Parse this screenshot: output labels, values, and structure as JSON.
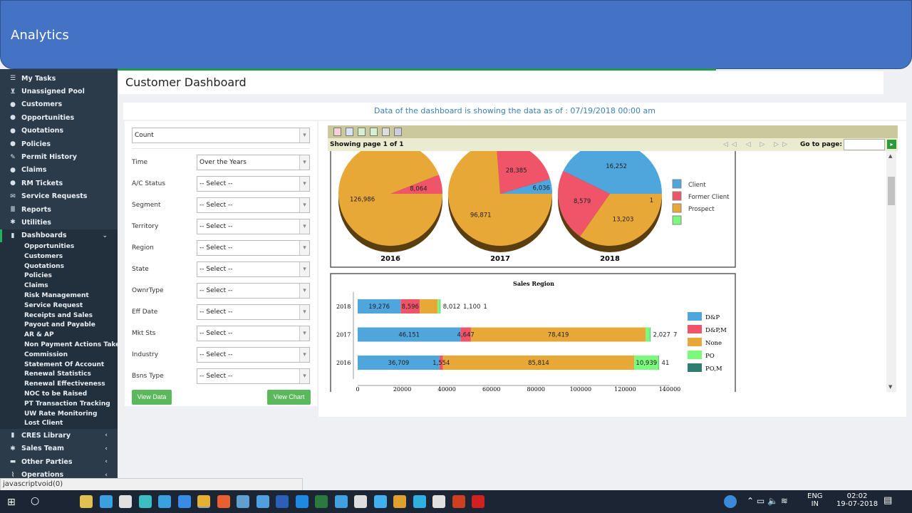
{
  "header": {
    "title": "Analytics"
  },
  "sidebar": {
    "items": [
      {
        "label": "My Tasks",
        "icon": "list-icon"
      },
      {
        "label": "Unassigned Pool",
        "icon": "cart-icon"
      },
      {
        "label": "Customers",
        "icon": "user-icon"
      },
      {
        "label": "Opportunities",
        "icon": "user-icon"
      },
      {
        "label": "Quotations",
        "icon": "user-icon"
      },
      {
        "label": "Policies",
        "icon": "user-icon"
      },
      {
        "label": "Permit History",
        "icon": "edit-icon"
      },
      {
        "label": "Claims",
        "icon": "user-icon"
      },
      {
        "label": "RM Tickets",
        "icon": "user-icon"
      },
      {
        "label": "Service Requests",
        "icon": "envelope-icon"
      },
      {
        "label": "Reports",
        "icon": "database-icon"
      },
      {
        "label": "Utilities",
        "icon": "gear-icon"
      },
      {
        "label": "Dashboards",
        "icon": "bar-chart-icon"
      }
    ],
    "dashboard_sub": [
      "Opportunities",
      "Customers",
      "Quotations",
      "Policies",
      "Claims",
      "Risk Management",
      "Service Request",
      "Receipts and Sales",
      "Payout and Payable",
      "AR & AP",
      "Non Payment Actions Taken",
      "Commission",
      "Statement Of Account",
      "Renewal Statistics",
      "Renewal Effectiveness",
      "NOC to be Raised",
      "PT Transaction Tracking",
      "UW Rate Monitoring",
      "Lost Client"
    ],
    "bottom_items": [
      {
        "label": "CRES Library",
        "icon": "bar-chart-icon"
      },
      {
        "label": "Sales Team",
        "icon": "gear-icon"
      },
      {
        "label": "Other Parties",
        "icon": "briefcase-icon"
      },
      {
        "label": "Operations",
        "icon": "paperclip-icon"
      }
    ]
  },
  "status_bar": "javascriptvoid(0)",
  "page": {
    "title": "Customer Dashboard",
    "info": "Data of the dashboard is showing the data as of : 07/19/2018 00:00 am"
  },
  "filters": {
    "measure": "Count",
    "fields": [
      {
        "label": "Time",
        "value": "Over the Years"
      },
      {
        "label": "A/C Status",
        "value": "-- Select --"
      },
      {
        "label": "Segment",
        "value": "-- Select --"
      },
      {
        "label": "Territory",
        "value": "-- Select --"
      },
      {
        "label": "Region",
        "value": "-- Select --"
      },
      {
        "label": "State",
        "value": "-- Select --"
      },
      {
        "label": "OwnrType",
        "value": "-- Select --"
      },
      {
        "label": "Eff Date",
        "value": "-- Select --"
      },
      {
        "label": "Mkt Sts",
        "value": "-- Select --"
      },
      {
        "label": "Industry",
        "value": "-- Select --"
      },
      {
        "label": "Bsns Type",
        "value": "-- Select --"
      }
    ],
    "view_data": "View Data",
    "view_chart": "View Chart"
  },
  "report": {
    "paging": "Showing page  1  of  1",
    "goto_label": "Go to page:",
    "goto_value": ""
  },
  "chart_data": [
    {
      "type": "pie",
      "categories": [
        "Client",
        "Former Client",
        "Prospect",
        ""
      ],
      "colors": [
        "#4ea6dc",
        "#ef5468",
        "#e8a838",
        "#7cf87c"
      ],
      "pies": [
        {
          "label": "2016",
          "values": [
            7,
            8064,
            126986,
            0
          ]
        },
        {
          "label": "2017",
          "values": [
            6036,
            28385,
            96871,
            0
          ]
        },
        {
          "label": "2018",
          "values": [
            16252,
            8579,
            13203,
            1
          ]
        }
      ],
      "legend": "right"
    },
    {
      "type": "bar",
      "orientation": "horizontal",
      "stacked": true,
      "title": "Sales Region",
      "categories": [
        "2018",
        "2017",
        "2016"
      ],
      "xlim": [
        0,
        140000
      ],
      "xticks": [
        "0",
        "20000",
        "40000",
        "60000",
        "80000",
        "100000",
        "120000",
        "140000"
      ],
      "legend": "right",
      "series": [
        {
          "name": "D&P",
          "color": "#4ea6dc",
          "values": [
            19276,
            46151,
            36709
          ]
        },
        {
          "name": "D&P,M",
          "color": "#ef5468",
          "values": [
            8596,
            4647,
            1554
          ]
        },
        {
          "name": "None",
          "color": "#e8a838",
          "values": [
            8012,
            78419,
            85814
          ]
        },
        {
          "name": "PO",
          "color": "#7cf87c",
          "values": [
            1100,
            2027,
            10939
          ]
        },
        {
          "name": "PO,M",
          "color": "#2e7d73",
          "values": [
            1,
            7,
            41
          ]
        }
      ]
    }
  ],
  "taskbar": {
    "time": "02:02",
    "date": "19-07-2018",
    "lang": "ENG",
    "region": "IN"
  }
}
